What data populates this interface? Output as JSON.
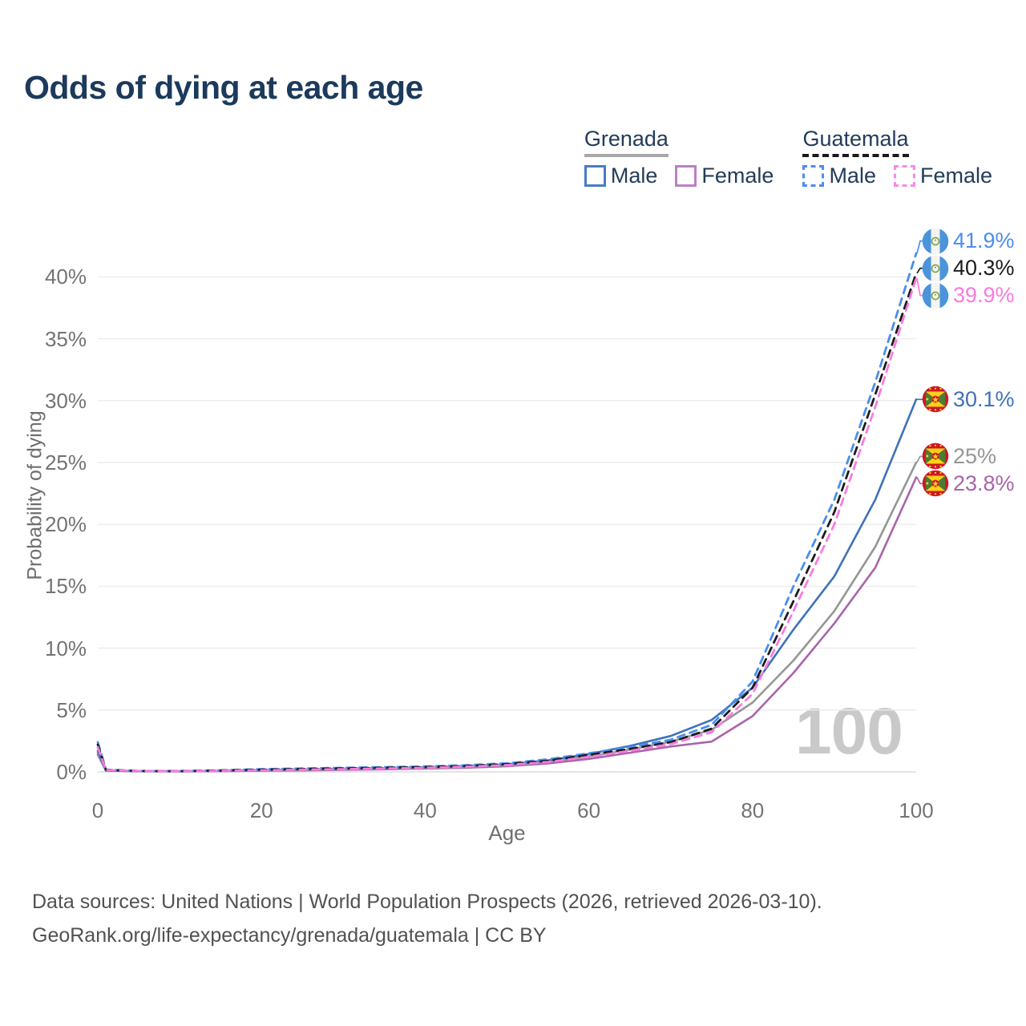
{
  "title": "Odds of dying at each age",
  "watermark": "100",
  "legend": {
    "groups": [
      {
        "country": "Grenada",
        "line_style": "solid",
        "underline_color": "#a8a8a8",
        "items": [
          {
            "label": "Male",
            "color": "#4a7cc2"
          },
          {
            "label": "Female",
            "color": "#bd7fc6"
          }
        ]
      },
      {
        "country": "Guatemala",
        "line_style": "dashed",
        "underline_color": "#1a1a1a",
        "items": [
          {
            "label": "Male",
            "color": "#4a8df0"
          },
          {
            "label": "Female",
            "color": "#fb87ea"
          }
        ]
      }
    ]
  },
  "axes": {
    "y_title": "Probability of dying",
    "x_title": "Age",
    "y_ticks": [
      "0%",
      "5%",
      "10%",
      "15%",
      "20%",
      "25%",
      "30%",
      "35%",
      "40%"
    ],
    "x_ticks": [
      "0",
      "20",
      "40",
      "60",
      "80",
      "100"
    ]
  },
  "endpoints": [
    {
      "series": "guatemala_male",
      "text": "41.9%",
      "flag": "guatemala"
    },
    {
      "series": "guatemala_all",
      "text": "40.3%",
      "flag": "guatemala"
    },
    {
      "series": "guatemala_female",
      "text": "39.9%",
      "flag": "guatemala"
    },
    {
      "series": "grenada_male",
      "text": "30.1%",
      "flag": "grenada"
    },
    {
      "series": "grenada_all",
      "text": "25%",
      "flag": "grenada"
    },
    {
      "series": "grenada_female",
      "text": "23.8%",
      "flag": "grenada"
    }
  ],
  "footer": {
    "line1": "Data sources: United Nations | World Population Prospects (2026, retrieved 2026-03-10).",
    "line2": "GeoRank.org/life-expectancy/grenada/guatemala | CC BY"
  },
  "chart_data": {
    "type": "line",
    "title": "Odds of dying at each age",
    "xlabel": "Age",
    "ylabel": "Probability of dying",
    "xlim": [
      0,
      100
    ],
    "ylim_pct": [
      0,
      43
    ],
    "grid": "horizontal",
    "legend_position": "top-right",
    "x": [
      0,
      1,
      5,
      10,
      15,
      20,
      25,
      30,
      35,
      40,
      45,
      50,
      55,
      60,
      65,
      70,
      75,
      80,
      85,
      90,
      95,
      100
    ],
    "series": [
      {
        "name": "grenada_female",
        "country": "Grenada",
        "sex": "Female",
        "color": "#a965ab",
        "dash": false,
        "values_pct": [
          1.4,
          0.1,
          0.05,
          0.04,
          0.06,
          0.09,
          0.12,
          0.16,
          0.21,
          0.27,
          0.34,
          0.46,
          0.68,
          1.05,
          1.55,
          2.05,
          2.45,
          4.5,
          8.0,
          12.0,
          16.5,
          23.8
        ],
        "end_label": "23.8%"
      },
      {
        "name": "grenada_all",
        "country": "Grenada",
        "sex": "Both",
        "color": "#969696",
        "dash": false,
        "values_pct": [
          1.55,
          0.11,
          0.05,
          0.05,
          0.08,
          0.12,
          0.16,
          0.2,
          0.25,
          0.31,
          0.4,
          0.53,
          0.8,
          1.25,
          1.8,
          2.45,
          3.4,
          5.6,
          9.0,
          13.0,
          18.2,
          25.0
        ],
        "end_label": "25%"
      },
      {
        "name": "grenada_male",
        "country": "Grenada",
        "sex": "Male",
        "color": "#3f72b8",
        "dash": false,
        "values_pct": [
          1.7,
          0.12,
          0.06,
          0.06,
          0.1,
          0.16,
          0.21,
          0.26,
          0.31,
          0.37,
          0.47,
          0.62,
          0.92,
          1.45,
          2.1,
          2.9,
          4.2,
          6.8,
          11.5,
          15.8,
          22.0,
          30.1
        ],
        "end_label": "30.1%"
      },
      {
        "name": "guatemala_male",
        "country": "Guatemala",
        "sex": "Male",
        "color": "#4a8df0",
        "dash": true,
        "values_pct": [
          2.4,
          0.18,
          0.08,
          0.07,
          0.13,
          0.22,
          0.28,
          0.33,
          0.38,
          0.44,
          0.54,
          0.7,
          1.02,
          1.5,
          2.0,
          2.6,
          3.8,
          7.3,
          15.0,
          22.0,
          31.5,
          41.9
        ],
        "end_label": "41.9%"
      },
      {
        "name": "guatemala_all",
        "country": "Guatemala",
        "sex": "Both",
        "color": "#1c1c1c",
        "dash": true,
        "values_pct": [
          2.2,
          0.16,
          0.07,
          0.06,
          0.11,
          0.18,
          0.23,
          0.28,
          0.33,
          0.39,
          0.48,
          0.62,
          0.9,
          1.38,
          1.85,
          2.4,
          3.5,
          6.8,
          13.8,
          21.0,
          30.5,
          40.3
        ],
        "end_label": "40.3%"
      },
      {
        "name": "guatemala_female",
        "country": "Guatemala",
        "sex": "Female",
        "color": "#f97ae0",
        "dash": true,
        "values_pct": [
          2.0,
          0.15,
          0.07,
          0.05,
          0.09,
          0.13,
          0.18,
          0.22,
          0.27,
          0.33,
          0.42,
          0.55,
          0.8,
          1.22,
          1.7,
          2.25,
          3.2,
          6.3,
          13.0,
          20.0,
          29.5,
          39.9
        ],
        "end_label": "39.9%"
      }
    ]
  }
}
